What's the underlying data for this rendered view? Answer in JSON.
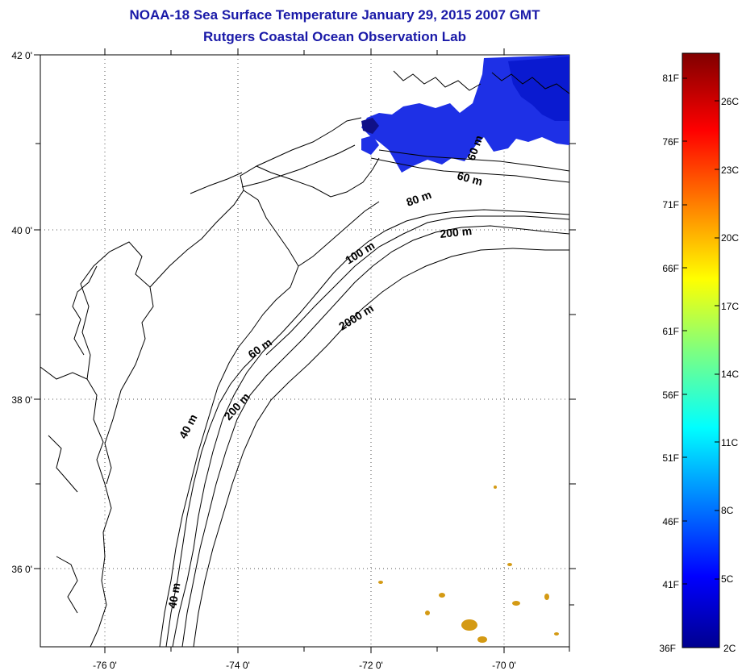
{
  "header": {
    "title": "NOAA-18 Sea Surface Temperature January 29, 2015 2007 GMT",
    "subtitle": "Rutgers Coastal Ocean Observation Lab"
  },
  "map": {
    "x_ticks": [
      "-76 0'",
      "-74 0'",
      "-72 0'",
      "-70 0'"
    ],
    "y_ticks": [
      "42 0'",
      "40 0'",
      "38 0'",
      "36 0'"
    ],
    "contour_labels": [
      "40 m",
      "40 m",
      "60 m",
      "60 m",
      "60 m",
      "80 m",
      "100 m",
      "200 m",
      "200 m",
      "2000 m"
    ],
    "coastline_color": "#000000",
    "grid": "dotted"
  },
  "colorbar": {
    "fahrenheit_labels": [
      "81F",
      "76F",
      "71F",
      "66F",
      "61F",
      "56F",
      "51F",
      "46F",
      "41F",
      "36F"
    ],
    "celsius_labels": [
      "26C",
      "23C",
      "20C",
      "17C",
      "14C",
      "11C",
      "8C",
      "5C",
      "2C"
    ],
    "colormap": "jet",
    "range_c": [
      2,
      28
    ]
  }
}
